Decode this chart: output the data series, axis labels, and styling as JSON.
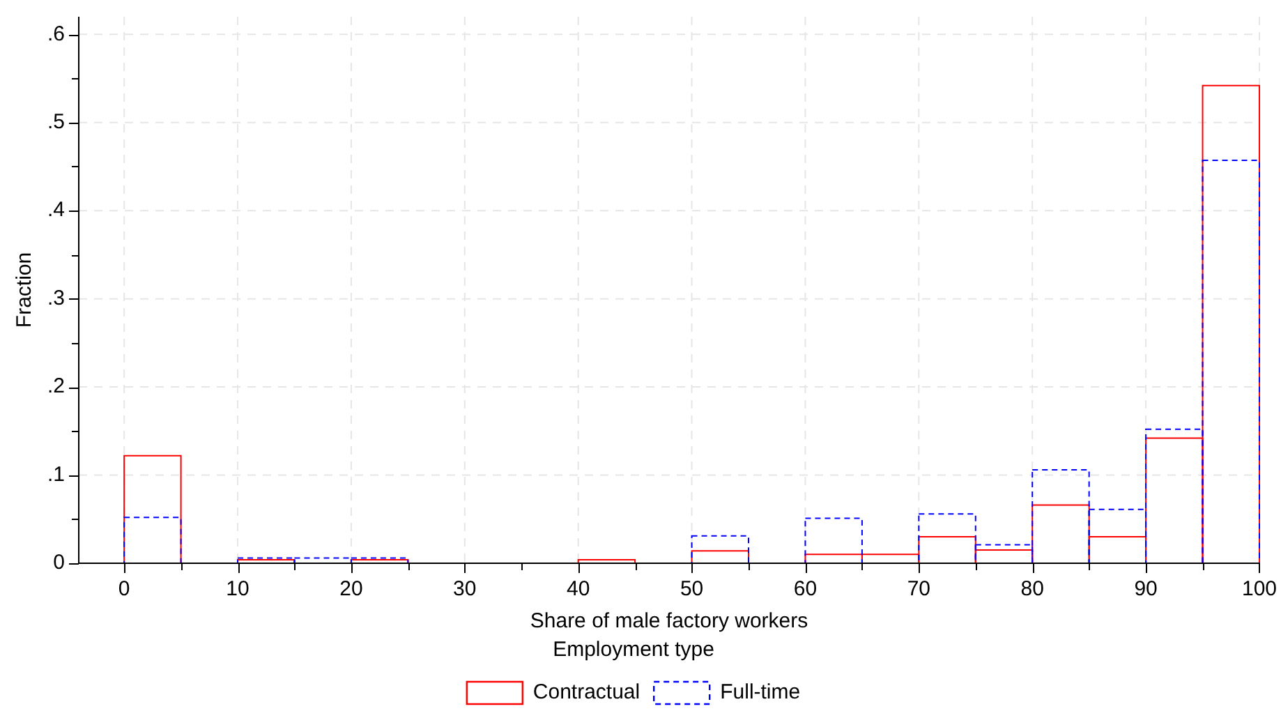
{
  "chart_data": {
    "type": "histogram",
    "xlabel": "Share of male factory workers",
    "ylabel": "Fraction",
    "legend_title": "Employment type",
    "legend": "bottom",
    "grid": true,
    "bins": [
      0,
      5,
      10,
      15,
      20,
      25,
      30,
      35,
      40,
      45,
      50,
      55,
      60,
      65,
      70,
      75,
      80,
      85,
      90,
      95,
      100
    ],
    "series": [
      {
        "name": "Contractual",
        "color": "#ff0000",
        "line_style": "solid",
        "values": [
          0.122,
          0,
          0.004,
          0,
          0.004,
          0,
          0,
          0,
          0.004,
          0,
          0.014,
          0,
          0.01,
          0.01,
          0.03,
          0.015,
          0.066,
          0.03,
          0.142,
          0.542
        ]
      },
      {
        "name": "Full-time",
        "color": "#0000ff",
        "line_style": "dashed",
        "values": [
          0.052,
          0,
          0.006,
          0.006,
          0.006,
          0,
          0,
          0,
          0,
          0,
          0.031,
          0,
          0.051,
          0,
          0.056,
          0.021,
          0.106,
          0.061,
          0.152,
          0.457
        ]
      }
    ],
    "xlim": [
      -4,
      100
    ],
    "ylim": [
      0,
      0.62
    ],
    "xticks": [
      0,
      {
        "value": 5,
        "label": null
      },
      10,
      {
        "value": 15,
        "label": null
      },
      20,
      {
        "value": 25,
        "label": null
      },
      30,
      {
        "value": 35,
        "label": null
      },
      40,
      {
        "value": 45,
        "label": null
      },
      50,
      {
        "value": 55,
        "label": null
      },
      60,
      {
        "value": 65,
        "label": null
      },
      70,
      {
        "value": 75,
        "label": null
      },
      80,
      {
        "value": 85,
        "label": null
      },
      90,
      {
        "value": 95,
        "label": null
      },
      100
    ],
    "yticks": [
      0,
      {
        "value": 0.05,
        "label": null
      },
      {
        "value": 0.1,
        "label": ".1"
      },
      {
        "value": 0.15,
        "label": null
      },
      {
        "value": 0.2,
        "label": ".2"
      },
      {
        "value": 0.25,
        "label": null
      },
      {
        "value": 0.3,
        "label": ".3"
      },
      {
        "value": 0.35,
        "label": null
      },
      {
        "value": 0.4,
        "label": ".4"
      },
      {
        "value": 0.45,
        "label": null
      },
      {
        "value": 0.5,
        "label": ".5"
      },
      {
        "value": 0.55,
        "label": null
      },
      {
        "value": 0.6,
        "label": ".6"
      }
    ]
  }
}
